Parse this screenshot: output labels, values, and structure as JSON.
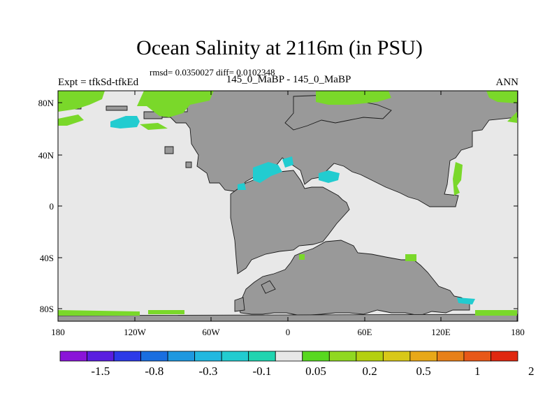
{
  "title": "Ocean Salinity at 2116m (in PSU)",
  "stats": "rmsd= 0.0350027 diff= 0.0102348",
  "experiment": "Expt = tfkSd-tfkEd",
  "exp_name": "145_0_MaBP - 145_0_MaBP",
  "season": "ANN",
  "map": {
    "lat_ticks": [
      "80N",
      "40N",
      "0",
      "40S",
      "80S"
    ],
    "lon_ticks": [
      "180",
      "120W",
      "60W",
      "0",
      "60E",
      "120E",
      "180"
    ],
    "land_color": "#999999",
    "ocean_near_zero_color": "#e8e8e8"
  },
  "colorbar": {
    "colors": [
      "#8a14d8",
      "#5a1ee0",
      "#2c3ae8",
      "#1a6ee0",
      "#1e98e0",
      "#22b8e0",
      "#22ccd0",
      "#20d4b0",
      "#e8e8e8",
      "#58d820",
      "#90d820",
      "#b4d010",
      "#d8c818",
      "#e8a818",
      "#e88018",
      "#e85818",
      "#e02810"
    ],
    "labels": [
      "-1.5",
      "-0.8",
      "-0.3",
      "-0.1",
      "0.05",
      "0.2",
      "0.5",
      "1",
      "2"
    ]
  }
}
